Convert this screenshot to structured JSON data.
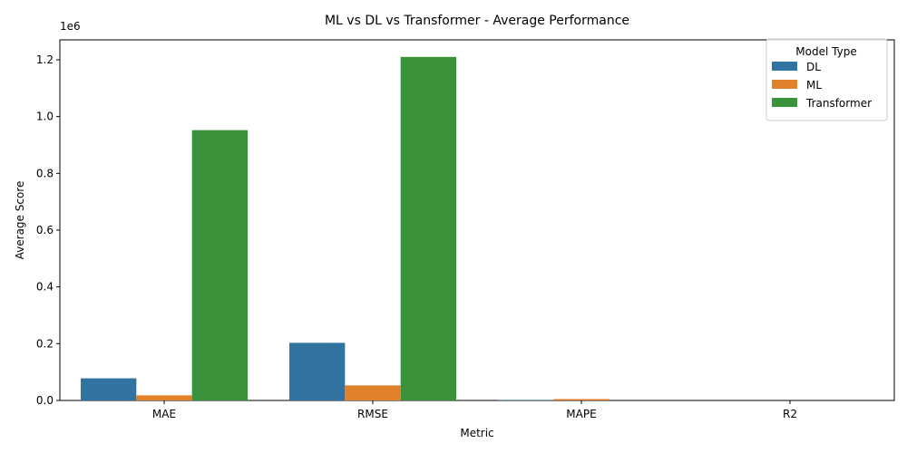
{
  "chart_data": {
    "type": "bar",
    "title": "ML vs DL vs Transformer - Average Performance",
    "xlabel": "Metric",
    "ylabel": "Average Score",
    "offset_label": "1e6",
    "categories": [
      "MAE",
      "RMSE",
      "MAPE",
      "R2"
    ],
    "ylim": [
      0,
      1270000
    ],
    "yticks": [
      0,
      200000,
      400000,
      600000,
      800000,
      1000000,
      1200000
    ],
    "ytick_labels": [
      "0.0",
      "0.2",
      "0.4",
      "0.6",
      "0.8",
      "1.0",
      "1.2"
    ],
    "grid": false,
    "legend": {
      "title": "Model Type",
      "placement": "top-right"
    },
    "series": [
      {
        "name": "DL",
        "color": "#3274a1",
        "values": [
          78000,
          203000,
          2000,
          0
        ]
      },
      {
        "name": "ML",
        "color": "#e1812c",
        "values": [
          18000,
          53000,
          5000,
          0
        ]
      },
      {
        "name": "Transformer",
        "color": "#3a923a",
        "values": [
          952000,
          1210000,
          0,
          0
        ]
      }
    ]
  }
}
